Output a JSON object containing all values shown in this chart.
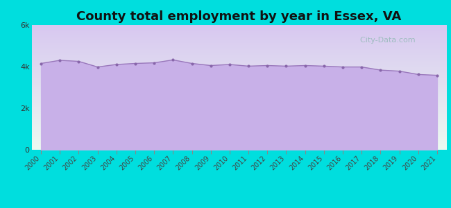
{
  "title": "County total employment by year in Essex, VA",
  "years": [
    2000,
    2001,
    2002,
    2003,
    2004,
    2005,
    2006,
    2007,
    2008,
    2009,
    2010,
    2011,
    2012,
    2013,
    2014,
    2015,
    2016,
    2017,
    2018,
    2019,
    2020,
    2021
  ],
  "values": [
    4150,
    4300,
    4250,
    3980,
    4100,
    4150,
    4180,
    4320,
    4150,
    4050,
    4100,
    4020,
    4050,
    4020,
    4050,
    4020,
    3980,
    3980,
    3830,
    3780,
    3620,
    3580
  ],
  "ylim": [
    0,
    6000
  ],
  "yticks": [
    0,
    2000,
    4000,
    6000
  ],
  "ytick_labels": [
    "0",
    "2k",
    "4k",
    "6k"
  ],
  "background_color": "#00dede",
  "plot_bg_top": "#edfaf2",
  "plot_bg_bottom": "#d8c8f0",
  "fill_color": "#c8b0e8",
  "line_color": "#9977bb",
  "marker_color": "#8866aa",
  "title_fontsize": 13,
  "title_color": "#111111",
  "watermark_text": "  City-Data.com",
  "watermark_color": "#99bbbb"
}
